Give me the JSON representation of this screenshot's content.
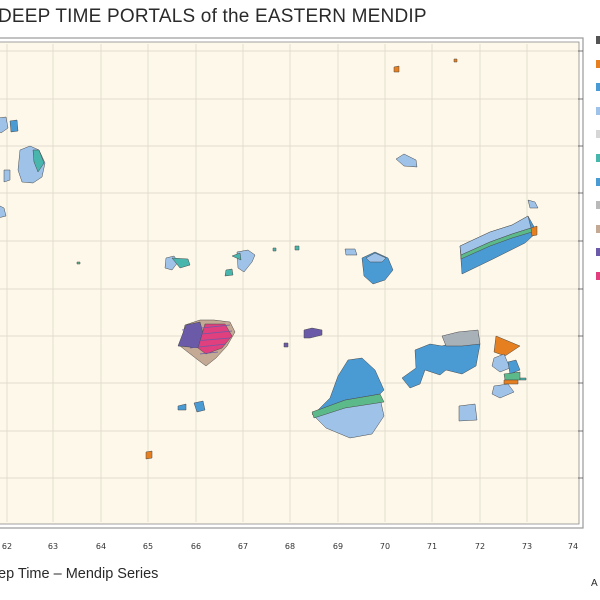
{
  "title": "DEEP TIME PORTALS of the EASTERN MENDIP",
  "subtitle": "ep Time – Mendip Series",
  "corner_text": "A",
  "x_ticks": [
    "62",
    "63",
    "64",
    "65",
    "66",
    "67",
    "68",
    "69",
    "70",
    "71",
    "72",
    "73",
    "74"
  ],
  "colors": {
    "background": "#fdf8ea",
    "orange": "#e57f1f",
    "blue": "#4a9ad4",
    "light_blue": "#9ec2e8",
    "teal": "#48b6ad",
    "green": "#5cb98a",
    "grey": "#a8b0b8",
    "tan": "#c4a994",
    "purple": "#6a5aa8",
    "magenta": "#e0407e"
  },
  "legend_swatches": [
    "#545454",
    "#e57f1f",
    "#4a9ad4",
    "#9ec2e8",
    "#d6d6d6",
    "#48b6ad",
    "#4a9ad4",
    "#b9b9b9",
    "#c4a994",
    "#6a5aa8",
    "#e0407e"
  ]
}
